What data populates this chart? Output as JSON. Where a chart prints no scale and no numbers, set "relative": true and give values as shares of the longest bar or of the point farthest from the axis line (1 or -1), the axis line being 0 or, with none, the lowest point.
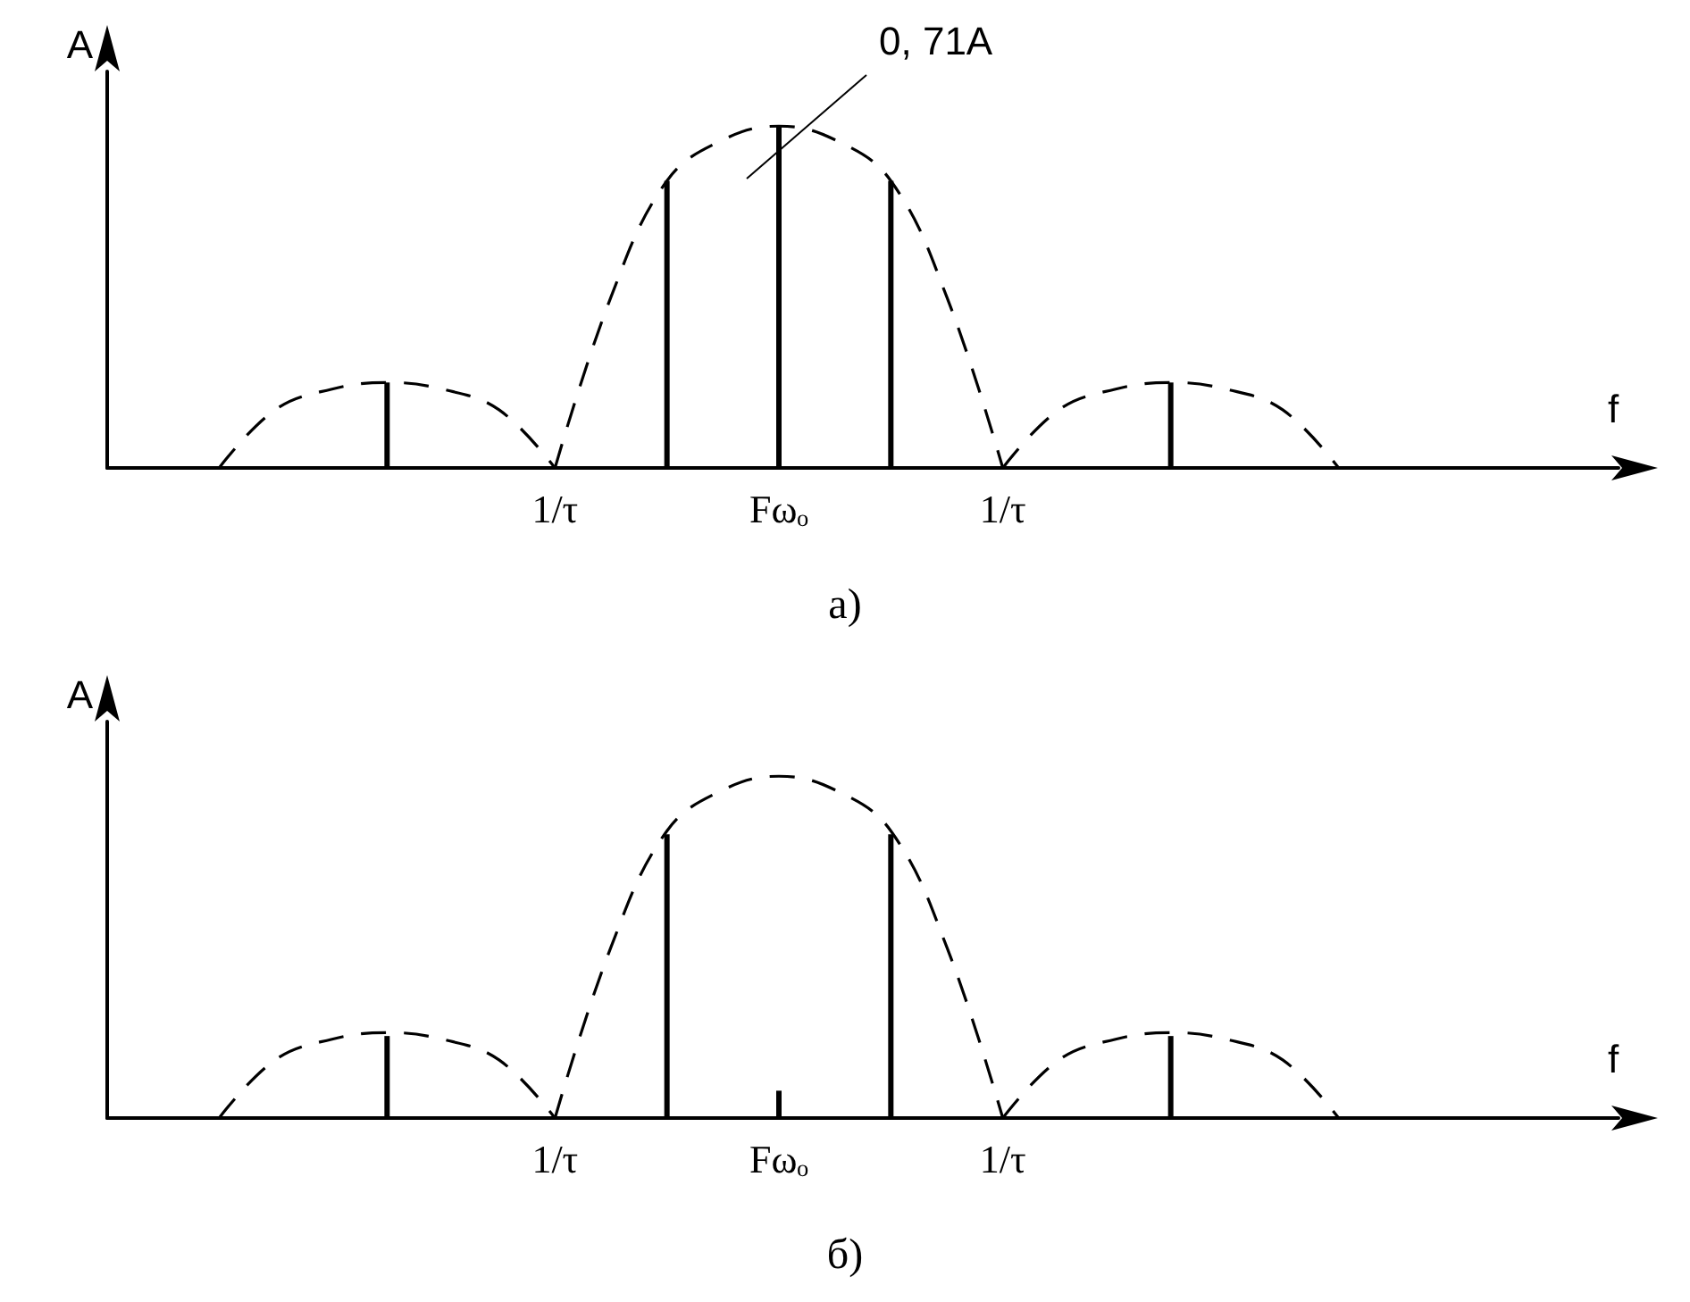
{
  "chart_data": [
    {
      "type": "bar",
      "title": "а)",
      "xlabel": "f",
      "ylabel": "A",
      "relative": true,
      "grid": false,
      "categories": [
        null,
        null,
        null,
        null,
        null,
        null,
        null,
        null,
        "1/τ",
        null,
        null,
        null,
        "Fωₒ",
        null,
        null,
        null,
        "1/τ",
        null,
        null,
        null,
        null,
        null,
        null,
        null,
        null,
        null,
        null,
        null
      ],
      "annotations": [
        "0, 71A"
      ],
      "series": [
        {
          "type": "line",
          "line_style": "dashed",
          "color": "#000000",
          "values": [
            null,
            null,
            0,
            0.17,
            0.23,
            0.25,
            0.23,
            0.17,
            0,
            null,
            null,
            null,
            null,
            null,
            null,
            null,
            null,
            null,
            null,
            null,
            null,
            null,
            null,
            null,
            null,
            null,
            null,
            null
          ]
        },
        {
          "type": "line",
          "line_style": "dashed",
          "color": "#000000",
          "values": [
            null,
            null,
            null,
            null,
            null,
            null,
            null,
            null,
            0,
            0.5,
            0.84,
            0.96,
            1,
            0.96,
            0.84,
            0.5,
            0,
            null,
            null,
            null,
            null,
            null,
            null,
            null,
            null,
            null,
            null,
            null
          ]
        },
        {
          "type": "line",
          "line_style": "dashed",
          "color": "#000000",
          "values": [
            null,
            null,
            null,
            null,
            null,
            null,
            null,
            null,
            null,
            null,
            null,
            null,
            null,
            null,
            null,
            null,
            0,
            0.17,
            0.23,
            0.25,
            0.23,
            0.17,
            0,
            null,
            null,
            null,
            null,
            null
          ]
        },
        {
          "color": "#000000",
          "values": [
            null,
            null,
            null,
            null,
            null,
            0.25,
            null,
            null,
            null,
            null,
            0.84,
            null,
            1,
            null,
            0.84,
            null,
            null,
            null,
            null,
            0.25,
            null,
            null,
            null,
            null,
            null,
            null,
            null,
            null
          ]
        }
      ]
    },
    {
      "type": "bar",
      "title": "б)",
      "xlabel": "f",
      "ylabel": "A",
      "relative": true,
      "grid": false,
      "categories": [
        null,
        null,
        null,
        null,
        null,
        null,
        null,
        null,
        "1/τ",
        null,
        null,
        null,
        "Fωₒ",
        null,
        null,
        null,
        "1/τ",
        null,
        null,
        null,
        null,
        null,
        null,
        null,
        null,
        null,
        null,
        null
      ],
      "series": [
        {
          "type": "line",
          "line_style": "dashed",
          "color": "#000000",
          "values": [
            null,
            null,
            0,
            0.17,
            0.23,
            0.25,
            0.23,
            0.17,
            0,
            null,
            null,
            null,
            null,
            null,
            null,
            null,
            null,
            null,
            null,
            null,
            null,
            null,
            null,
            null,
            null,
            null,
            null,
            null
          ]
        },
        {
          "type": "line",
          "line_style": "dashed",
          "color": "#000000",
          "values": [
            null,
            null,
            null,
            null,
            null,
            null,
            null,
            null,
            0,
            0.5,
            0.84,
            0.96,
            1,
            0.96,
            0.84,
            0.5,
            0,
            null,
            null,
            null,
            null,
            null,
            null,
            null,
            null,
            null,
            null,
            null
          ]
        },
        {
          "type": "line",
          "line_style": "dashed",
          "color": "#000000",
          "values": [
            null,
            null,
            null,
            null,
            null,
            null,
            null,
            null,
            null,
            null,
            null,
            null,
            null,
            null,
            null,
            null,
            0,
            0.17,
            0.23,
            0.25,
            0.23,
            0.17,
            0,
            null,
            null,
            null,
            null,
            null
          ]
        },
        {
          "color": "#000000",
          "values": [
            null,
            null,
            null,
            null,
            null,
            0.24,
            null,
            null,
            null,
            null,
            0.83,
            null,
            0.08,
            null,
            0.83,
            null,
            null,
            null,
            null,
            0.24,
            null,
            null,
            null,
            null,
            null,
            null,
            null,
            null
          ]
        }
      ]
    }
  ]
}
